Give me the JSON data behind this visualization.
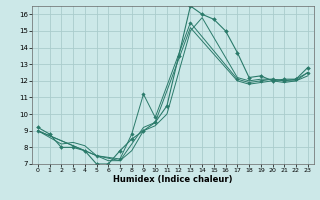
{
  "bg_color": "#cce8e8",
  "grid_color": "#aacccc",
  "line_color": "#2a7a6a",
  "xlabel": "Humidex (Indice chaleur)",
  "xlim": [
    -0.5,
    23.5
  ],
  "ylim": [
    7,
    16.5
  ],
  "yticks": [
    7,
    8,
    9,
    10,
    11,
    12,
    13,
    14,
    15,
    16
  ],
  "xticks": [
    0,
    1,
    2,
    3,
    4,
    5,
    6,
    7,
    8,
    9,
    10,
    11,
    12,
    13,
    14,
    15,
    16,
    17,
    18,
    19,
    20,
    21,
    22,
    23
  ],
  "lines": [
    {
      "x": [
        0,
        1,
        2,
        3,
        4,
        5,
        6,
        7,
        8,
        9,
        10,
        11,
        12,
        13,
        14,
        15,
        16,
        17,
        18,
        19,
        20,
        21,
        22,
        23
      ],
      "y": [
        9.2,
        8.8,
        8.0,
        8.0,
        7.8,
        7.0,
        7.0,
        7.8,
        8.5,
        9.0,
        9.5,
        10.5,
        13.5,
        16.5,
        16.0,
        15.7,
        15.0,
        13.7,
        12.2,
        12.3,
        12.0,
        12.1,
        12.1,
        12.8
      ],
      "marker": "D",
      "markersize": 2.0,
      "lw": 0.8
    },
    {
      "x": [
        0,
        2,
        3,
        4,
        5,
        6,
        7,
        8,
        9,
        10,
        11,
        13,
        14,
        17,
        18,
        19,
        20,
        21,
        22,
        23
      ],
      "y": [
        9.0,
        8.2,
        8.3,
        8.1,
        7.5,
        7.2,
        7.2,
        7.8,
        9.0,
        9.3,
        10.0,
        15.0,
        15.8,
        12.2,
        12.0,
        12.1,
        12.1,
        12.0,
        12.0,
        12.5
      ],
      "marker": "",
      "markersize": 0,
      "lw": 0.7
    },
    {
      "x": [
        0,
        5,
        7,
        8,
        9,
        10,
        13,
        17,
        18,
        19,
        20,
        21,
        22,
        23
      ],
      "y": [
        9.0,
        7.5,
        7.2,
        8.2,
        9.2,
        9.5,
        15.2,
        12.0,
        11.8,
        11.9,
        12.0,
        11.9,
        12.0,
        12.3
      ],
      "marker": "",
      "markersize": 0,
      "lw": 0.7
    },
    {
      "x": [
        0,
        5,
        7,
        8,
        9,
        10,
        13,
        17,
        18,
        19,
        20,
        21,
        22,
        23
      ],
      "y": [
        9.0,
        7.5,
        7.3,
        8.8,
        11.2,
        9.8,
        15.5,
        12.1,
        11.9,
        12.0,
        12.1,
        12.0,
        12.1,
        12.5
      ],
      "marker": "D",
      "markersize": 1.8,
      "lw": 0.7
    }
  ]
}
